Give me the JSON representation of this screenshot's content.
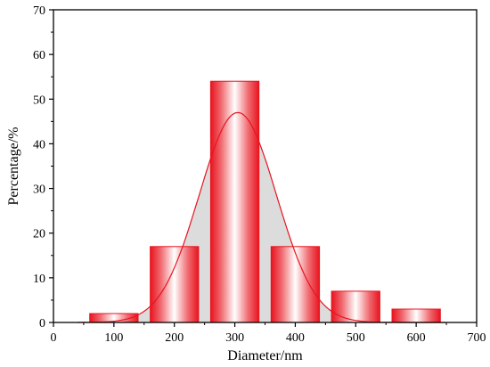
{
  "chart_data": {
    "type": "bar",
    "title": "",
    "xlabel": "Diameter/nm",
    "ylabel": "Percentage/%",
    "xlim": [
      0,
      700
    ],
    "ylim": [
      0,
      70
    ],
    "xticks": [
      0,
      100,
      200,
      300,
      400,
      500,
      600,
      700
    ],
    "yticks": [
      0,
      10,
      20,
      30,
      40,
      50,
      60,
      70
    ],
    "grid": false,
    "bar_color": "#e8141f",
    "curve_color": "#e8141f",
    "fill_color": "#dcdcdc",
    "bars": [
      {
        "x": 100,
        "value": 2
      },
      {
        "x": 200,
        "value": 17
      },
      {
        "x": 300,
        "value": 54
      },
      {
        "x": 400,
        "value": 17
      },
      {
        "x": 500,
        "value": 7
      },
      {
        "x": 600,
        "value": 3
      }
    ],
    "fit_curve": {
      "type": "gaussian",
      "center": 305,
      "amplitude": 47,
      "sigma": 64
    }
  }
}
